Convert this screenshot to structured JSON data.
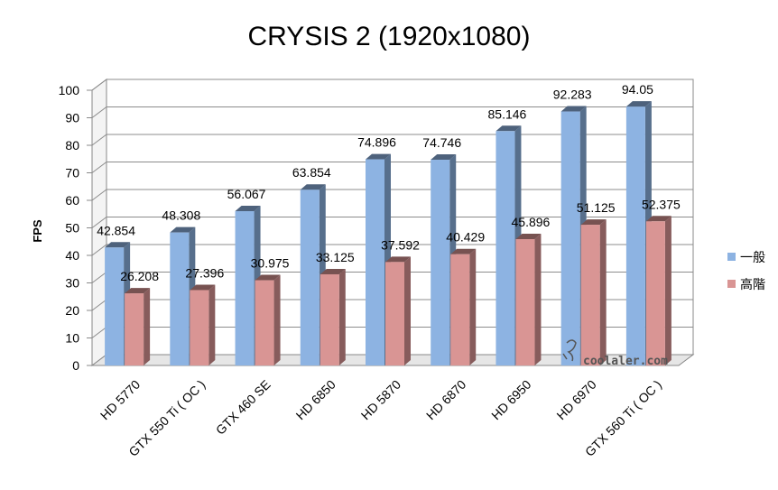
{
  "chart_data": {
    "type": "bar",
    "title": "CRYSIS 2 (1920x1080)",
    "ylabel": "FPS",
    "xlabel": "",
    "ylim": [
      0,
      100
    ],
    "yticks": [
      0,
      10,
      20,
      30,
      40,
      50,
      60,
      70,
      80,
      90,
      100
    ],
    "grid": true,
    "three_d": true,
    "legend_position": "right",
    "categories": [
      "HD 5770",
      "GTX 550 Ti ( OC )",
      "GTX 460 SE",
      "HD 6850",
      "HD 5870",
      "HD 6870",
      "HD 6950",
      "HD 6970",
      "GTX 560 Ti ( OC )"
    ],
    "series": [
      {
        "name": "一般",
        "color": "#8db3e2",
        "values": [
          42.854,
          48.308,
          56.067,
          63.854,
          74.896,
          74.746,
          85.146,
          92.283,
          94.05
        ]
      },
      {
        "name": "高階",
        "color": "#d99594",
        "values": [
          26.208,
          27.396,
          30.975,
          33.125,
          37.592,
          40.429,
          45.896,
          51.125,
          52.375
        ]
      }
    ]
  },
  "watermark": "coolaler.com"
}
